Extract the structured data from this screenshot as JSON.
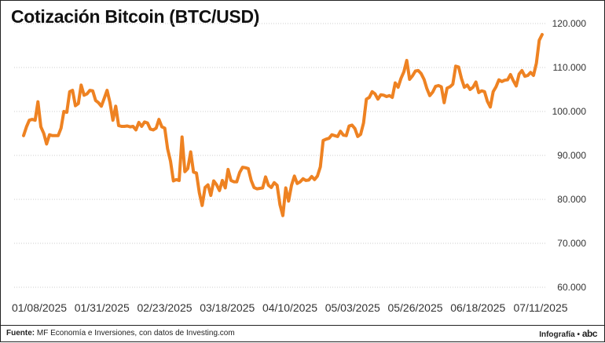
{
  "title": "Cotización Bitcoin (BTC/USD)",
  "footer": {
    "source_label": "Fuente:",
    "source_text": "MF Economía e Inversiones, con datos de Investing.com",
    "credit_label": "Infografía •",
    "logo": "abc"
  },
  "colors": {
    "line": "#ee8222",
    "grid": "#cccccc",
    "text": "#333333"
  },
  "chart_data": {
    "type": "line",
    "title": "Cotización Bitcoin (BTC/USD)",
    "xlabel": "",
    "ylabel": "",
    "ylim": [
      60000,
      120000
    ],
    "y_ticks": [
      60000,
      70000,
      80000,
      90000,
      100000,
      110000,
      120000
    ],
    "y_tick_labels": [
      "60.000",
      "70.000",
      "80.000",
      "90.000",
      "100.000",
      "110.000",
      "120.000"
    ],
    "x_ticks": [
      "01/08/2025",
      "01/31/2025",
      "02/23/2025",
      "03/18/2025",
      "04/10/2025",
      "05/03/2025",
      "05/26/2025",
      "06/18/2025",
      "07/11/2025"
    ],
    "grid": "horizontal",
    "series": [
      {
        "values": [
          [
            0,
            94500
          ],
          [
            1,
            96500
          ],
          [
            2,
            98000
          ],
          [
            3,
            98200
          ],
          [
            4,
            98000
          ],
          [
            5,
            102200
          ],
          [
            6,
            96500
          ],
          [
            7,
            95000
          ],
          [
            8,
            92600
          ],
          [
            9,
            94700
          ],
          [
            10,
            94500
          ],
          [
            11,
            94500
          ],
          [
            12,
            94500
          ],
          [
            13,
            96200
          ],
          [
            14,
            100000
          ],
          [
            15,
            99800
          ],
          [
            16,
            104500
          ],
          [
            17,
            104800
          ],
          [
            18,
            101300
          ],
          [
            19,
            101800
          ],
          [
            20,
            106000
          ],
          [
            21,
            103700
          ],
          [
            22,
            104000
          ],
          [
            23,
            104800
          ],
          [
            24,
            104700
          ],
          [
            25,
            102500
          ],
          [
            26,
            102000
          ],
          [
            27,
            101200
          ],
          [
            28,
            103000
          ],
          [
            29,
            104800
          ],
          [
            30,
            102000
          ],
          [
            31,
            98000
          ],
          [
            32,
            101200
          ],
          [
            33,
            96800
          ],
          [
            34,
            96600
          ],
          [
            35,
            96600
          ],
          [
            36,
            96700
          ],
          [
            37,
            96500
          ],
          [
            38,
            96600
          ],
          [
            39,
            95800
          ],
          [
            40,
            97500
          ],
          [
            41,
            96600
          ],
          [
            42,
            97600
          ],
          [
            43,
            97400
          ],
          [
            44,
            96000
          ],
          [
            45,
            95800
          ],
          [
            46,
            96200
          ],
          [
            47,
            98200
          ],
          [
            48,
            96500
          ],
          [
            49,
            96200
          ],
          [
            50,
            91500
          ],
          [
            51,
            88700
          ],
          [
            52,
            84200
          ],
          [
            53,
            84500
          ],
          [
            54,
            84300
          ],
          [
            55,
            94200
          ],
          [
            56,
            86300
          ],
          [
            57,
            87000
          ],
          [
            58,
            90800
          ],
          [
            59,
            86200
          ],
          [
            60,
            86000
          ],
          [
            61,
            81500
          ],
          [
            62,
            78600
          ],
          [
            63,
            82700
          ],
          [
            64,
            83300
          ],
          [
            65,
            80900
          ],
          [
            66,
            84200
          ],
          [
            67,
            83300
          ],
          [
            68,
            82000
          ],
          [
            69,
            84300
          ],
          [
            70,
            82600
          ],
          [
            71,
            86800
          ],
          [
            72,
            84300
          ],
          [
            73,
            84000
          ],
          [
            74,
            84000
          ],
          [
            75,
            86100
          ],
          [
            76,
            87300
          ],
          [
            77,
            87200
          ],
          [
            78,
            87000
          ],
          [
            79,
            84300
          ],
          [
            80,
            82700
          ],
          [
            81,
            82400
          ],
          [
            82,
            82500
          ],
          [
            83,
            82600
          ],
          [
            84,
            85100
          ],
          [
            85,
            83200
          ],
          [
            86,
            82700
          ],
          [
            87,
            83800
          ],
          [
            88,
            83200
          ],
          [
            89,
            78800
          ],
          [
            90,
            76300
          ],
          [
            91,
            82600
          ],
          [
            92,
            79600
          ],
          [
            93,
            83200
          ],
          [
            94,
            85300
          ],
          [
            95,
            83600
          ],
          [
            96,
            84000
          ],
          [
            97,
            84700
          ],
          [
            98,
            84300
          ],
          [
            99,
            84400
          ],
          [
            100,
            85200
          ],
          [
            101,
            84500
          ],
          [
            102,
            85300
          ],
          [
            103,
            87400
          ],
          [
            104,
            93400
          ],
          [
            105,
            93700
          ],
          [
            106,
            93900
          ],
          [
            107,
            94700
          ],
          [
            108,
            94500
          ],
          [
            109,
            94300
          ],
          [
            110,
            95500
          ],
          [
            111,
            94600
          ],
          [
            112,
            94500
          ],
          [
            113,
            96700
          ],
          [
            114,
            96900
          ],
          [
            115,
            96100
          ],
          [
            116,
            94300
          ],
          [
            117,
            94800
          ],
          [
            118,
            97400
          ],
          [
            119,
            102800
          ],
          [
            120,
            103200
          ],
          [
            121,
            104500
          ],
          [
            122,
            104000
          ],
          [
            123,
            102800
          ],
          [
            124,
            103800
          ],
          [
            125,
            103700
          ],
          [
            126,
            103400
          ],
          [
            127,
            103600
          ],
          [
            128,
            103200
          ],
          [
            129,
            106500
          ],
          [
            130,
            105500
          ],
          [
            131,
            107500
          ],
          [
            132,
            109000
          ],
          [
            133,
            111600
          ],
          [
            134,
            107300
          ],
          [
            135,
            108100
          ],
          [
            136,
            109200
          ],
          [
            137,
            109300
          ],
          [
            138,
            108600
          ],
          [
            139,
            107300
          ],
          [
            140,
            105200
          ],
          [
            141,
            103600
          ],
          [
            142,
            104400
          ],
          [
            143,
            105700
          ],
          [
            144,
            105900
          ],
          [
            145,
            105600
          ],
          [
            146,
            102000
          ],
          [
            147,
            105300
          ],
          [
            148,
            105600
          ],
          [
            149,
            106200
          ],
          [
            150,
            110300
          ],
          [
            151,
            110100
          ],
          [
            152,
            107500
          ],
          [
            153,
            105500
          ],
          [
            154,
            106000
          ],
          [
            155,
            105000
          ],
          [
            156,
            105500
          ],
          [
            157,
            106700
          ],
          [
            158,
            104300
          ],
          [
            159,
            104700
          ],
          [
            160,
            104500
          ],
          [
            161,
            102300
          ],
          [
            162,
            101000
          ],
          [
            163,
            104500
          ],
          [
            164,
            105600
          ],
          [
            165,
            107200
          ],
          [
            166,
            106800
          ],
          [
            167,
            107100
          ],
          [
            168,
            107200
          ],
          [
            169,
            108400
          ],
          [
            170,
            107000
          ],
          [
            171,
            105800
          ],
          [
            172,
            108500
          ],
          [
            173,
            109300
          ],
          [
            174,
            108000
          ],
          [
            175,
            108200
          ],
          [
            176,
            108900
          ],
          [
            177,
            108200
          ],
          [
            178,
            111000
          ],
          [
            179,
            116200
          ],
          [
            180,
            117500
          ]
        ]
      }
    ]
  }
}
